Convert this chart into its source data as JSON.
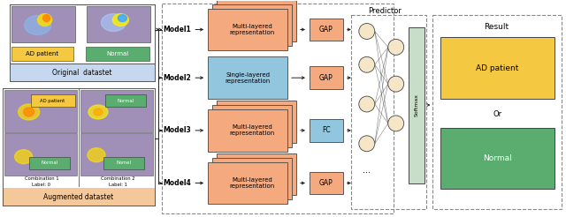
{
  "fig_width": 6.4,
  "fig_height": 2.46,
  "dpi": 100,
  "bg_color": "#ffffff",
  "colors": {
    "salmon": "#F4A97F",
    "steel_blue": "#92C5DE",
    "yellow": "#F5C842",
    "green": "#5BAD6F",
    "neuron_fill": "#F5E6C8",
    "softmax_fill": "#C8DEC8",
    "orig_dataset_bg": "#C5D8F0",
    "aug_dataset_bg": "#F4C89A",
    "heatmap_bg": "#A090B8",
    "arrow": "#222222",
    "dashed": "#888888",
    "dark_border": "#444444"
  },
  "orig_dataset_label": "Original  datastet",
  "aug_dataset_label": "Augmented datastet",
  "ad_patient_label": "AD patient",
  "normal_label": "Normal",
  "predictor_label": "Predictor",
  "result_label": "Result",
  "or_label": "Or",
  "ad_result_label": "AD patient",
  "normal_result_label": "Normal",
  "model_names": [
    "Model1",
    "Model2",
    "Model3",
    "Model4"
  ],
  "rep_texts": [
    "Multi-layered\nrepresentation",
    "Single-layered\nrepresentation",
    "Multi-layered\nrepresentation",
    "Multi-layered\nrepresentation"
  ],
  "gap_texts": [
    "GAP",
    "GAP",
    "FC",
    "GAP"
  ],
  "rep_colors": [
    "salmon",
    "steel_blue",
    "salmon",
    "salmon"
  ],
  "gap_colors": [
    "salmon",
    "salmon",
    "steel_blue",
    "salmon"
  ],
  "single_layer": [
    false,
    true,
    false,
    false
  ]
}
